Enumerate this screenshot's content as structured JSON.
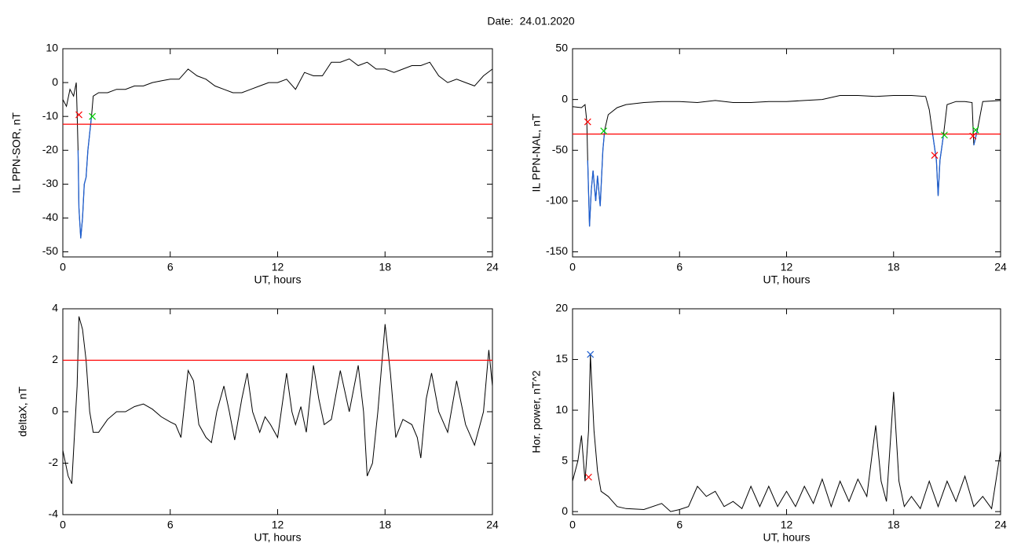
{
  "title": "Date:  24.01.2020",
  "chart_data": [
    {
      "type": "line",
      "xlabel": "UT, hours",
      "ylabel": "IL PPN-SOR, nT",
      "xlim": [
        0,
        24
      ],
      "xticks": [
        0,
        6,
        12,
        18,
        24
      ],
      "ylim": [
        -51.5,
        10
      ],
      "yticks": [
        -50,
        -40,
        -30,
        -20,
        -10,
        0,
        10
      ],
      "series": [
        {
          "color": "#000000",
          "x": [
            0,
            0.2,
            0.4,
            0.6,
            0.75,
            0.8,
            0.85,
            0.9,
            1.0,
            1.1,
            1.2,
            1.3,
            1.4,
            1.5,
            1.6,
            1.7,
            2,
            2.5,
            3,
            3.5,
            4,
            4.5,
            5,
            5.5,
            6,
            6.5,
            7,
            7.5,
            8,
            8.5,
            9,
            9.5,
            10,
            10.5,
            11,
            11.5,
            12,
            12.5,
            13,
            13.5,
            14,
            14.5,
            15,
            15.5,
            16,
            16.5,
            17,
            17.5,
            18,
            18.5,
            19,
            19.5,
            20,
            20.5,
            21,
            21.5,
            22,
            22.5,
            23,
            23.5,
            24
          ],
          "values": [
            -5,
            -7,
            -2,
            -4,
            0,
            -9,
            -20,
            -37,
            -46,
            -40,
            -30,
            -28,
            -20,
            -15,
            -10,
            -4,
            -3,
            -3,
            -2,
            -2,
            -1,
            -1,
            0,
            0.5,
            1,
            1,
            4,
            2,
            1,
            -1,
            -2,
            -3,
            -3,
            -2,
            -1,
            0,
            0,
            1,
            -2,
            3,
            2,
            2,
            6,
            6,
            7,
            5,
            6,
            4,
            4,
            3,
            4,
            5,
            5,
            6,
            2,
            0,
            1,
            0,
            -1,
            2,
            4
          ]
        },
        {
          "color": "#1f5fd0",
          "x": [
            0.85,
            0.9,
            1.0,
            1.1,
            1.2,
            1.3,
            1.4,
            1.5,
            1.6
          ],
          "values": [
            -20,
            -37,
            -46,
            -40,
            -30,
            -28,
            -20,
            -15,
            -10
          ]
        },
        {
          "color": "#ff0000",
          "x": [
            0,
            24
          ],
          "values": [
            -12.3,
            -12.3
          ]
        },
        {
          "color": "#ff0000",
          "marker": "x",
          "x": [
            0.9
          ],
          "values": [
            -9.5
          ]
        },
        {
          "color": "#00cc00",
          "marker": "x",
          "x": [
            1.65
          ],
          "values": [
            -10
          ]
        }
      ]
    },
    {
      "type": "line",
      "xlabel": "UT, hours",
      "ylabel": "IL PPN-NAL, nT",
      "xlim": [
        0,
        24
      ],
      "xticks": [
        0,
        6,
        12,
        18,
        24
      ],
      "ylim": [
        -155,
        50
      ],
      "yticks": [
        -150,
        -100,
        -50,
        0,
        50
      ],
      "series": [
        {
          "color": "#000000",
          "x": [
            0,
            0.5,
            0.7,
            0.8,
            0.85,
            0.95,
            1.05,
            1.15,
            1.3,
            1.4,
            1.55,
            1.7,
            1.8,
            2,
            2.5,
            3,
            4,
            5,
            6,
            7,
            8,
            9,
            10,
            11,
            12,
            13,
            14,
            15,
            16,
            17,
            18,
            19,
            19.8,
            20,
            20.2,
            20.4,
            20.5,
            20.6,
            20.8,
            21,
            21.5,
            22,
            22.4,
            22.5,
            22.7,
            23,
            24
          ],
          "values": [
            -7,
            -8,
            -5,
            -22,
            -60,
            -125,
            -90,
            -70,
            -100,
            -75,
            -105,
            -50,
            -30,
            -15,
            -8,
            -5,
            -3,
            -2,
            -2,
            -3,
            -1,
            -3,
            -3,
            -2,
            -2,
            -1,
            0,
            4,
            4,
            3,
            4,
            4,
            3,
            -10,
            -35,
            -60,
            -95,
            -60,
            -35,
            -5,
            -2,
            -2,
            -3,
            -45,
            -30,
            -2,
            -1
          ]
        },
        {
          "color": "#1f5fd0",
          "x": [
            0.85,
            0.95,
            1.05,
            1.15,
            1.3,
            1.4,
            1.55,
            1.7,
            1.8,
            10,
            20.2,
            20.4,
            20.5,
            20.6,
            20.8,
            22,
            22.5,
            22.7
          ],
          "values": [
            -60,
            -125,
            -90,
            -70,
            -100,
            -75,
            -105,
            -50,
            -30,
            null,
            -35,
            -60,
            -95,
            -60,
            -35,
            null,
            -45,
            -30
          ]
        },
        {
          "color": "#ff0000",
          "x": [
            0,
            24
          ],
          "values": [
            -34,
            -34
          ]
        },
        {
          "color": "#ff0000",
          "marker": "x",
          "x": [
            0.85,
            20.3,
            22.45
          ],
          "values": [
            -22,
            -55,
            -36
          ]
        },
        {
          "color": "#00cc00",
          "marker": "x",
          "x": [
            1.75,
            20.85,
            22.6
          ],
          "values": [
            -31,
            -35,
            -30
          ]
        }
      ]
    },
    {
      "type": "line",
      "xlabel": "UT, hours",
      "ylabel": "deltaX, nT",
      "xlim": [
        0,
        24
      ],
      "xticks": [
        0,
        6,
        12,
        18,
        24
      ],
      "ylim": [
        -4,
        4
      ],
      "yticks": [
        -4,
        -2,
        0,
        2,
        4
      ],
      "series": [
        {
          "color": "#000000",
          "x": [
            0,
            0.3,
            0.5,
            0.8,
            0.9,
            1.1,
            1.3,
            1.5,
            1.7,
            2,
            2.5,
            3,
            3.5,
            4,
            4.5,
            5,
            5.5,
            6,
            6.3,
            6.6,
            7,
            7.3,
            7.6,
            8,
            8.3,
            8.6,
            9,
            9.3,
            9.6,
            10,
            10.3,
            10.6,
            11,
            11.3,
            11.6,
            12,
            12.5,
            12.8,
            13,
            13.3,
            13.6,
            14,
            14.3,
            14.6,
            15,
            15.5,
            16,
            16.5,
            16.8,
            17,
            17.3,
            17.6,
            18,
            18.3,
            18.6,
            19,
            19.5,
            19.8,
            20,
            20.3,
            20.6,
            21,
            21.5,
            22,
            22.5,
            23,
            23.5,
            23.8,
            24
          ],
          "values": [
            -1.5,
            -2.5,
            -2.8,
            1,
            3.7,
            3.2,
            2,
            0,
            -0.8,
            -0.8,
            -0.3,
            0,
            0,
            0.2,
            0.3,
            0.1,
            -0.2,
            -0.4,
            -0.5,
            -1,
            1.6,
            1.2,
            -0.5,
            -1,
            -1.2,
            0,
            1,
            0,
            -1.1,
            0.5,
            1.5,
            0,
            -0.8,
            -0.2,
            -0.5,
            -1,
            1.5,
            0,
            -0.5,
            0.2,
            -0.8,
            1.8,
            0.5,
            -0.5,
            -0.3,
            1.6,
            0,
            1.8,
            0,
            -2.5,
            -2,
            0,
            3.4,
            1.5,
            -1,
            -0.3,
            -0.5,
            -1,
            -1.8,
            0.5,
            1.5,
            0,
            -0.8,
            1.2,
            -0.5,
            -1.3,
            0,
            2.4,
            1
          ]
        },
        {
          "color": "#ff0000",
          "x": [
            0,
            24
          ],
          "values": [
            2,
            2
          ]
        }
      ]
    },
    {
      "type": "line",
      "xlabel": "UT, hours",
      "ylabel": "Hor. power, nT^2",
      "xlim": [
        0,
        24
      ],
      "xticks": [
        0,
        6,
        12,
        18,
        24
      ],
      "ylim": [
        -0.3,
        20
      ],
      "yticks": [
        0,
        5,
        10,
        15,
        20
      ],
      "series": [
        {
          "color": "#000000",
          "x": [
            0,
            0.3,
            0.5,
            0.7,
            0.9,
            1.0,
            1.2,
            1.4,
            1.6,
            2,
            2.5,
            3,
            4,
            5,
            5.5,
            6,
            6.5,
            7,
            7.5,
            8,
            8.5,
            9,
            9.5,
            10,
            10.5,
            11,
            11.5,
            12,
            12.5,
            13,
            13.5,
            14,
            14.5,
            15,
            15.5,
            16,
            16.5,
            17,
            17.3,
            17.6,
            18,
            18.3,
            18.6,
            19,
            19.5,
            20,
            20.5,
            21,
            21.5,
            22,
            22.5,
            23,
            23.5,
            24
          ],
          "values": [
            3,
            5,
            7.5,
            3,
            8,
            15.5,
            8,
            4,
            2,
            1.5,
            0.5,
            0.3,
            0.2,
            0.8,
            0,
            0.2,
            0.5,
            2.5,
            1.5,
            2,
            0.5,
            1,
            0.3,
            2.5,
            0.5,
            2.5,
            0.5,
            2,
            0.5,
            2.5,
            0.8,
            3.2,
            0.5,
            3,
            1,
            3.2,
            1.5,
            8.5,
            3,
            1,
            11.8,
            3,
            0.5,
            1.5,
            0.3,
            3,
            0.5,
            3,
            1,
            3.5,
            0.5,
            1.5,
            0.3,
            6
          ]
        },
        {
          "color": "#1f5fd0",
          "marker": "x",
          "x": [
            1.0
          ],
          "values": [
            15.5
          ]
        },
        {
          "color": "#ff0000",
          "marker": "x",
          "x": [
            0.9
          ],
          "values": [
            3.4
          ]
        }
      ]
    }
  ]
}
